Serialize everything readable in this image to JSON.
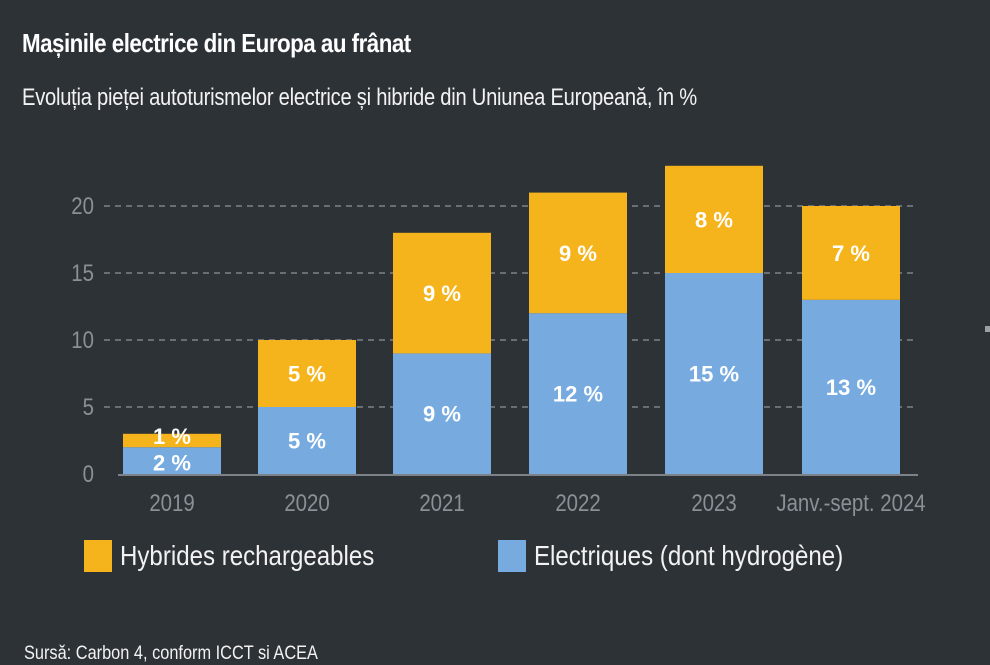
{
  "header": {
    "title": "Mașinile electrice din Europa au frânat",
    "subtitle": "Evoluția pieței autoturismelor electrice și hibride din Uniunea Europeană, în %"
  },
  "footer": {
    "source": "Sursă: Carbon 4, conform ICCT si ACEA"
  },
  "colors": {
    "background": "#2d3237",
    "hybrid": "#f6b41c",
    "electric": "#77abe0",
    "grid": "#7d8288",
    "axis_text": "#8b9096"
  },
  "chart_data": {
    "type": "bar",
    "stacked": true,
    "title": "Mașinile electrice din Europa au frânat",
    "subtitle": "Evoluția pieței autoturismelor electrice și hibride din Uniunea Europeană, în %",
    "xlabel": "",
    "ylabel": "",
    "categories": [
      "2019",
      "2020",
      "2021",
      "2022",
      "2023",
      "Janv.-sept. 2024"
    ],
    "series": [
      {
        "name": "Electriques (dont hydrogène)",
        "values": [
          2,
          5,
          9,
          12,
          15,
          13
        ],
        "labels": [
          "2 %",
          "5 %",
          "9 %",
          "12 %",
          "15 %",
          "13 %"
        ]
      },
      {
        "name": "Hybrides rechargeables",
        "values": [
          1,
          5,
          9,
          9,
          8,
          7
        ],
        "labels": [
          "1 %",
          "5 %",
          "9 %",
          "9 %",
          "8 %",
          "7 %"
        ]
      }
    ],
    "yticks": [
      0,
      5,
      10,
      15,
      20
    ],
    "ylim": [
      0,
      20
    ],
    "grid": true,
    "legend": {
      "placement": "bottom-left",
      "entries": [
        "Hybrides rechargeables",
        "Electriques (dont hydrogène)"
      ]
    }
  }
}
